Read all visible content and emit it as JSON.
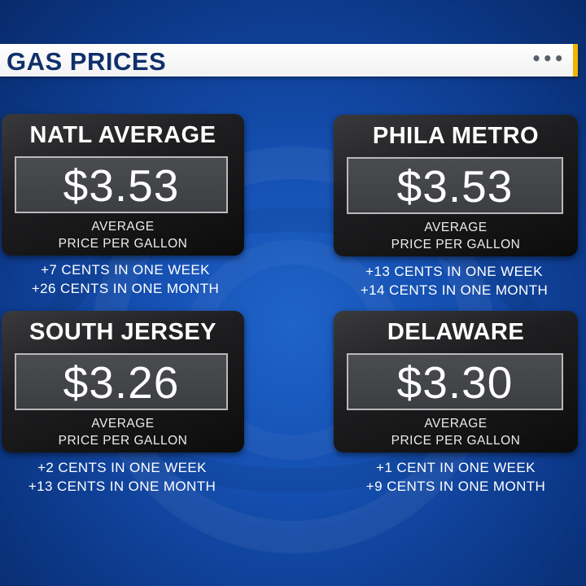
{
  "header": {
    "title": "GAS PRICES",
    "dots": "•••",
    "accent_color": "#f1b400"
  },
  "cards": [
    {
      "title": "NATL AVERAGE",
      "price": "$3.53",
      "sub_line1": "AVERAGE",
      "sub_line2": "PRICE PER GALLON",
      "week_change": "+7 CENTS IN ONE WEEK",
      "month_change": "+26 CENTS IN ONE MONTH"
    },
    {
      "title": "PHILA METRO",
      "price": "$3.53",
      "sub_line1": "AVERAGE",
      "sub_line2": "PRICE PER GALLON",
      "week_change": "+13 CENTS IN ONE WEEK",
      "month_change": "+14 CENTS IN ONE MONTH"
    },
    {
      "title": "SOUTH JERSEY",
      "price": "$3.26",
      "sub_line1": "AVERAGE",
      "sub_line2": "PRICE PER GALLON",
      "week_change": "+2 CENTS IN ONE WEEK",
      "month_change": "+13 CENTS IN ONE MONTH"
    },
    {
      "title": "DELAWARE",
      "price": "$3.30",
      "sub_line1": "AVERAGE",
      "sub_line2": "PRICE PER GALLON",
      "week_change": "+1 CENT IN ONE WEEK",
      "month_change": "+9 CENTS IN ONE MONTH"
    }
  ],
  "colors": {
    "background": "#1550b2",
    "title_text": "#10306b"
  }
}
